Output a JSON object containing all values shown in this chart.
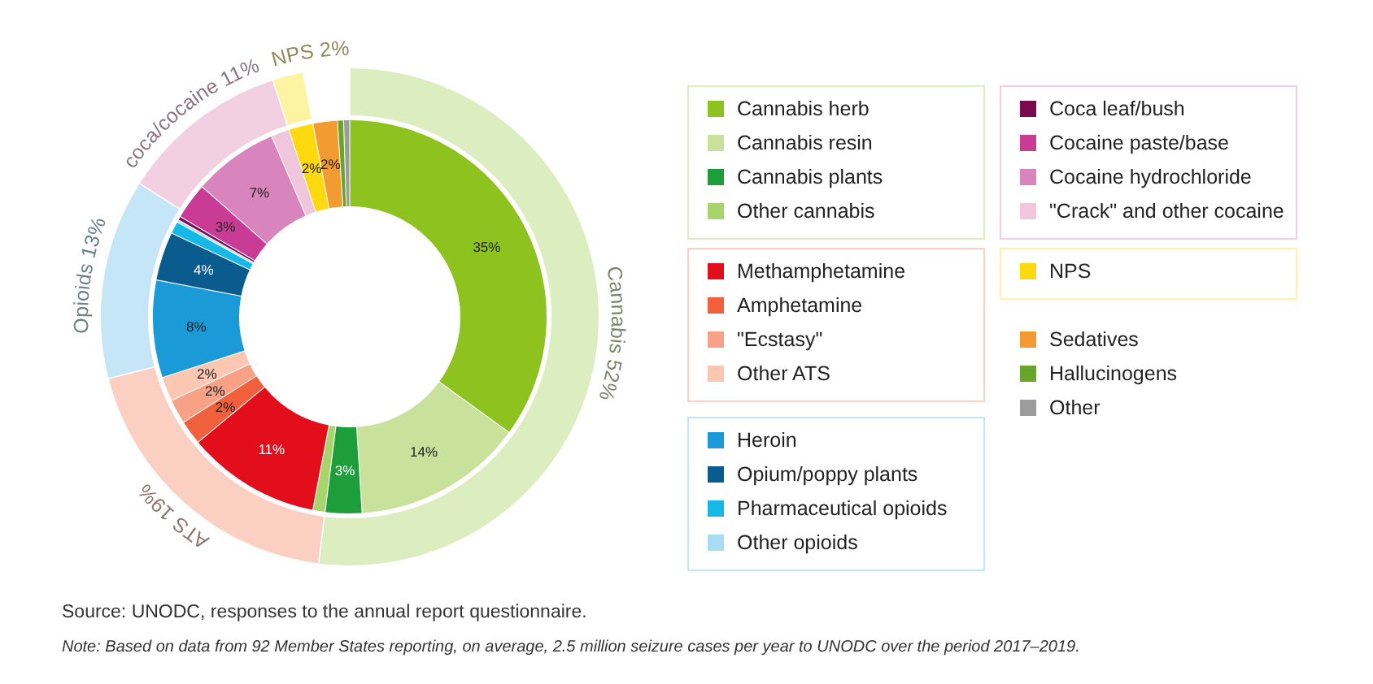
{
  "chart_data": [
    {
      "type": "donut",
      "categories": [
        "Cannabis herb",
        "Cannabis resin",
        "Cannabis plants",
        "Other cannabis",
        "Methamphetamine",
        "Amphetamine",
        "\"Ecstasy\"",
        "Other ATS",
        "Heroin",
        "Opium/poppy plants",
        "Pharmaceutical opioids",
        "Other opioids",
        "Coca leaf/bush",
        "Cocaine paste/base",
        "Cocaine hydrochloride",
        "\"Crack\" and other cocaine",
        "NPS",
        "Sedatives",
        "Hallucinogens",
        "Other"
      ],
      "values": [
        35,
        14,
        3,
        1,
        11,
        2,
        2,
        2,
        8,
        4,
        1,
        0.2,
        0.3,
        3,
        7,
        1.5,
        2,
        2,
        0.5,
        0.5
      ],
      "colors": [
        "#8dc21f",
        "#c9e29b",
        "#1e9e3a",
        "#a8d56b",
        "#e30e1c",
        "#f0603c",
        "#f7a287",
        "#fbc7b3",
        "#1a9ad7",
        "#0a5c8f",
        "#15b8e6",
        "#a8dcf4",
        "#7a0a4f",
        "#c93c96",
        "#d985bd",
        "#efc6dc",
        "#fcd90f",
        "#f29b30",
        "#6aa52a",
        "#9c9c9c"
      ],
      "value_labels": [
        "35%",
        "14%",
        "3%",
        null,
        "11%",
        "2%",
        "2%",
        "2%",
        "8%",
        "4%",
        null,
        null,
        null,
        "3%",
        "7%",
        null,
        "2%",
        "2%",
        null,
        null
      ],
      "legend": "right",
      "annotations": [
        "Source: UNODC, responses to the annual report questionnaire.",
        "Note: Based on data from 92 Member States reporting, on average, 2.5 million seizure cases per year to UNODC over the period 2017–2019."
      ]
    },
    {
      "type": "donut",
      "categories": [
        "Cannabis 52%",
        "ATS 19%",
        "Opioids 13%",
        "coca/cocaine 11%",
        "NPS 2%"
      ],
      "values": [
        52,
        19,
        13,
        11,
        2
      ],
      "colors": [
        "#dcedc0",
        "#fbd0c2",
        "#c4e6f6",
        "#f2cfe1",
        "#fdf3a0"
      ]
    }
  ]
}
